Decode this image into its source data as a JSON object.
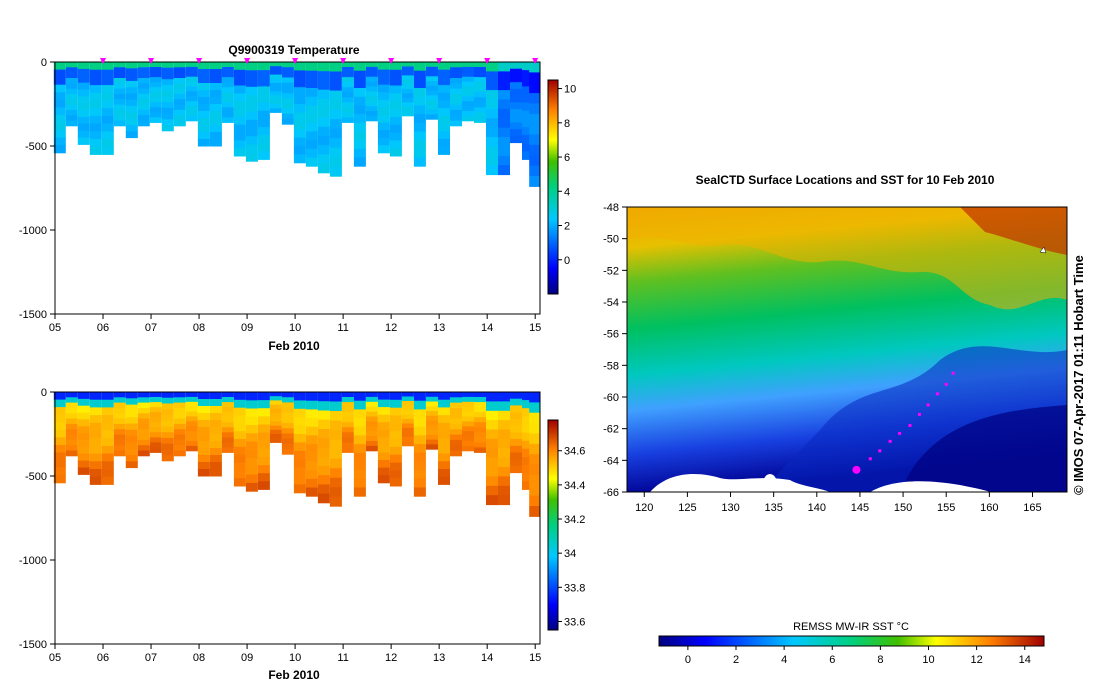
{
  "chart_data": [
    {
      "type": "heatmap",
      "name": "temperature-section",
      "title": "Q9900319  Temperature",
      "xlabel": "Feb 2010",
      "ylabel": "",
      "x_ticks": [
        "05",
        "06",
        "07",
        "08",
        "09",
        "10",
        "11",
        "12",
        "13",
        "14",
        "15"
      ],
      "xlim": [
        5.0,
        15.1
      ],
      "y_ticks": [
        "0",
        "-500",
        "-1000",
        "-1500"
      ],
      "ylim": [
        -1500,
        0
      ],
      "colorbar": {
        "ticks": [
          "10",
          "8",
          "6",
          "4",
          "2",
          "0"
        ],
        "range": [
          -2,
          10.5
        ]
      },
      "profiles": {
        "times": [
          5.1,
          5.35,
          5.6,
          5.85,
          6.1,
          6.35,
          6.6,
          6.85,
          7.1,
          7.35,
          7.6,
          7.85,
          8.1,
          8.35,
          8.6,
          8.85,
          9.1,
          9.35,
          9.6,
          9.85,
          10.1,
          10.35,
          10.6,
          10.85,
          11.1,
          11.35,
          11.6,
          11.85,
          12.1,
          12.35,
          12.6,
          12.85,
          13.1,
          13.35,
          13.6,
          13.85,
          14.1,
          14.35,
          14.6,
          14.85,
          15.0
        ],
        "max_depth_m": [
          540,
          380,
          490,
          550,
          550,
          380,
          450,
          380,
          360,
          410,
          380,
          350,
          500,
          500,
          360,
          560,
          590,
          580,
          300,
          370,
          600,
          620,
          660,
          680,
          360,
          620,
          350,
          540,
          560,
          320,
          620,
          340,
          550,
          380,
          350,
          360,
          670,
          670,
          480,
          580,
          740
        ]
      },
      "markers_times": [
        6,
        7,
        8,
        9,
        10,
        11,
        12,
        13,
        14,
        15
      ]
    },
    {
      "type": "heatmap",
      "name": "salinity-section",
      "title": "",
      "xlabel": "Feb 2010",
      "ylabel": "",
      "x_ticks": [
        "05",
        "06",
        "07",
        "08",
        "09",
        "10",
        "11",
        "12",
        "13",
        "14",
        "15"
      ],
      "xlim": [
        5.0,
        15.1
      ],
      "y_ticks": [
        "0",
        "-500",
        "-1000",
        "-1500"
      ],
      "ylim": [
        -1500,
        0
      ],
      "colorbar": {
        "ticks": [
          "34.6",
          "34.4",
          "34.2",
          "34",
          "33.8",
          "33.6"
        ],
        "range": [
          33.55,
          34.78
        ]
      }
    },
    {
      "type": "heatmap",
      "name": "sst-map",
      "title": "SealCTD Surface Locations and SST for 10 Feb 2010",
      "x_ticks": [
        "120",
        "125",
        "130",
        "135",
        "140",
        "145",
        "150",
        "155",
        "160",
        "165"
      ],
      "xlim": [
        118,
        169
      ],
      "y_ticks": [
        "-48",
        "-50",
        "-52",
        "-54",
        "-56",
        "-58",
        "-60",
        "-62",
        "-64",
        "-66"
      ],
      "ylim": [
        -66,
        -48
      ],
      "track_points": [
        [
          144.6,
          -64.6
        ],
        [
          146.2,
          -63.9
        ],
        [
          147.3,
          -63.4
        ],
        [
          148.5,
          -62.8
        ],
        [
          149.6,
          -62.3
        ],
        [
          150.8,
          -61.8
        ],
        [
          151.9,
          -61.1
        ],
        [
          152.9,
          -60.5
        ],
        [
          154.0,
          -59.8
        ],
        [
          155.0,
          -59.2
        ],
        [
          155.8,
          -58.5
        ]
      ],
      "track_last_point": [
        144.6,
        -64.6
      ],
      "colorbar": {
        "label": "REMSS MW-IR SST °C",
        "ticks": [
          "0",
          "2",
          "4",
          "6",
          "8",
          "10",
          "12",
          "14"
        ],
        "range": [
          -1.2,
          14.8
        ]
      }
    }
  ],
  "credit": "© IMOS 07-Apr-2017 01:11 Hobart Time",
  "colors": {
    "marker": "#ff00ff",
    "land": "#ffffff"
  }
}
